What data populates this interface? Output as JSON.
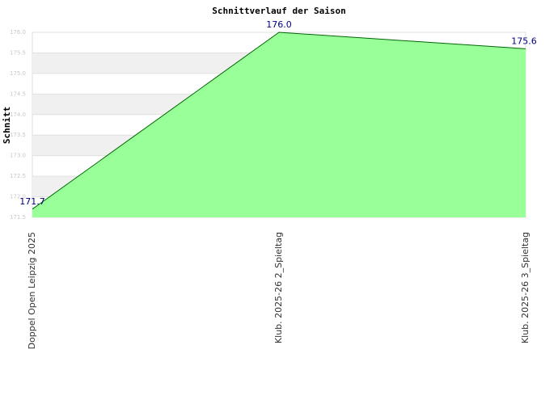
{
  "chart_data": {
    "type": "area",
    "title": "Schnittverlauf der Saison",
    "y_label": "Schnitt",
    "categories": [
      "Doppel Open Leipzig 2025",
      "Klub. 2025-26  2_Spieltag",
      "Klub. 2025-26  3_Spieltag"
    ],
    "values": [
      171.7,
      176.0,
      175.6
    ],
    "value_labels": [
      "171.7",
      "176.0",
      "175.6"
    ],
    "color": "#99ff99",
    "line_color": "#006600",
    "ylim": [
      171.5,
      176.0
    ],
    "yticks": [
      {
        "value": 171.5,
        "label": "171.5"
      },
      {
        "value": 172,
        "label": "172.0"
      },
      172.5,
      {
        "value": 173,
        "label": "173.0"
      },
      173.5,
      {
        "value": 174,
        "label": "174.0"
      },
      174.5,
      {
        "value": 175,
        "label": "175.0"
      },
      175.5,
      {
        "value": 176,
        "label": "176.0"
      }
    ],
    "grid": true
  }
}
